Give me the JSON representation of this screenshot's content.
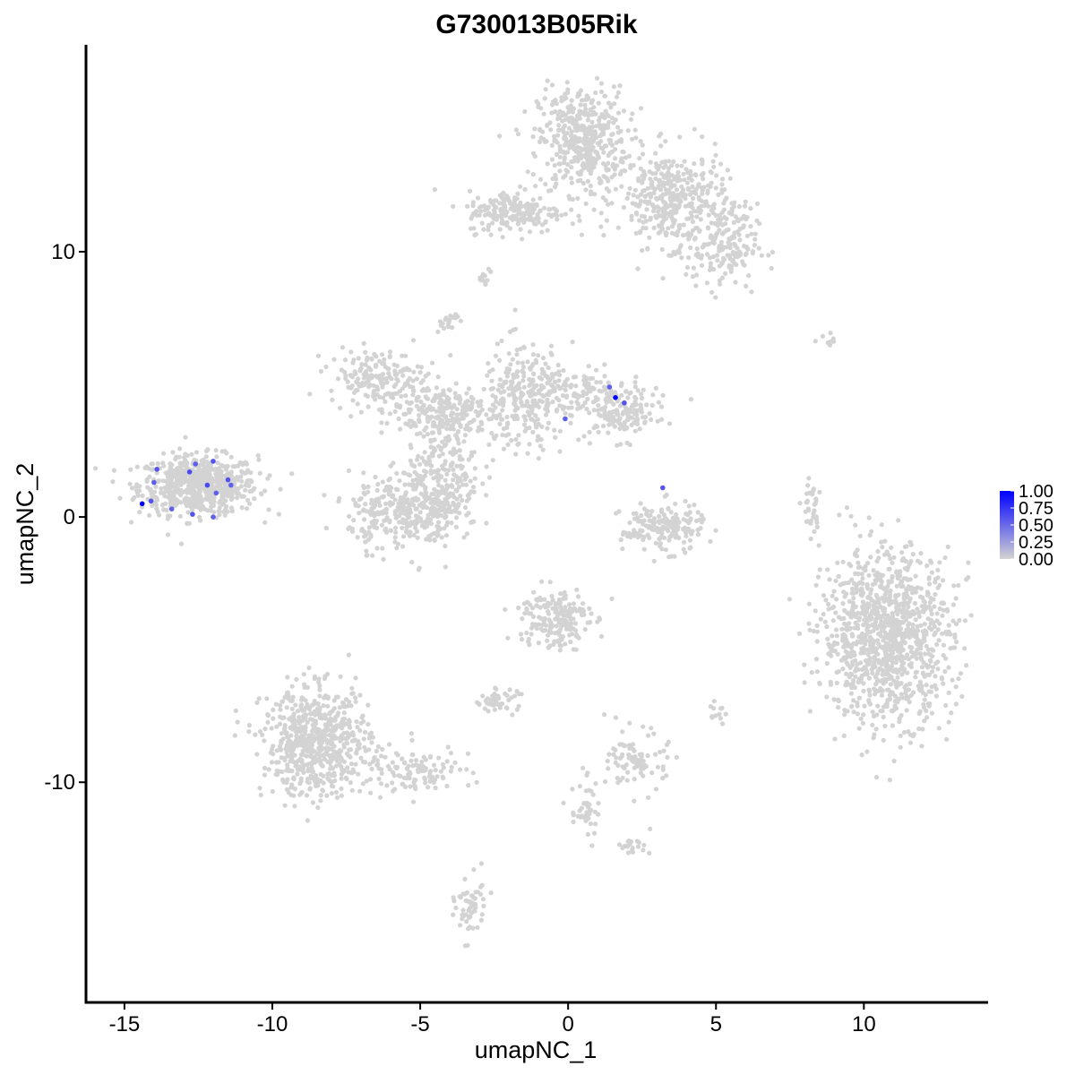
{
  "chart_data": {
    "type": "scatter",
    "title": "G730013B05Rik",
    "xlabel": "umapNC_1",
    "ylabel": "umapNC_2",
    "xlim": [
      -16.3,
      14.2
    ],
    "ylim": [
      -18.3,
      17.8
    ],
    "x_ticks": [
      -15,
      -10,
      -5,
      0,
      5,
      10
    ],
    "y_ticks": [
      -10,
      0,
      10
    ],
    "x_tick_labels": [
      "-15",
      "-10",
      "-5",
      "0",
      "5",
      "10"
    ],
    "y_tick_labels": [
      "-10",
      "0",
      "10"
    ],
    "grid": false,
    "legend": {
      "placement": "right",
      "type": "colorbar",
      "min_color": "#d3d3d3",
      "max_color": "#0000ff",
      "labels": [
        "1.00",
        "0.75",
        "0.50",
        "0.25",
        "0.00"
      ],
      "values": [
        1.0,
        0.75,
        0.5,
        0.25,
        0.0
      ]
    },
    "background_color": "#d3d3d3",
    "clusters": [
      {
        "cx": -12.5,
        "cy": 1.2,
        "sx": 1.0,
        "sy": 0.55,
        "n": 650
      },
      {
        "cx": 0.5,
        "cy": 14.2,
        "sx": 0.75,
        "sy": 1.0,
        "n": 450
      },
      {
        "cx": 3.5,
        "cy": 12.0,
        "sx": 0.9,
        "sy": 0.9,
        "n": 380
      },
      {
        "cx": 5.2,
        "cy": 10.2,
        "sx": 0.6,
        "sy": 0.8,
        "n": 180
      },
      {
        "cx": -1.8,
        "cy": 11.5,
        "sx": 0.8,
        "sy": 0.4,
        "n": 200
      },
      {
        "cx": -6.5,
        "cy": 5.3,
        "sx": 0.8,
        "sy": 0.5,
        "n": 170
      },
      {
        "cx": -4.3,
        "cy": 4.0,
        "sx": 1.0,
        "sy": 0.5,
        "n": 220
      },
      {
        "cx": -4.2,
        "cy": 1.8,
        "sx": 0.6,
        "sy": 1.2,
        "n": 260
      },
      {
        "cx": -5.6,
        "cy": 0.2,
        "sx": 0.9,
        "sy": 0.7,
        "n": 320
      },
      {
        "cx": -1.5,
        "cy": 4.5,
        "sx": 0.7,
        "sy": 1.0,
        "n": 240
      },
      {
        "cx": 1.8,
        "cy": 3.9,
        "sx": 0.6,
        "sy": 0.5,
        "n": 160
      },
      {
        "cx": 0.3,
        "cy": 4.8,
        "sx": 0.9,
        "sy": 0.4,
        "n": 120
      },
      {
        "cx": 3.2,
        "cy": -0.4,
        "sx": 0.7,
        "sy": 0.45,
        "n": 180
      },
      {
        "cx": 10.8,
        "cy": -4.5,
        "sx": 1.1,
        "sy": 1.6,
        "n": 1100
      },
      {
        "cx": -8.5,
        "cy": -8.5,
        "sx": 0.9,
        "sy": 1.0,
        "n": 650
      },
      {
        "cx": -5.3,
        "cy": -9.6,
        "sx": 1.0,
        "sy": 0.4,
        "n": 120
      },
      {
        "cx": -0.5,
        "cy": -3.8,
        "sx": 0.6,
        "sy": 0.6,
        "n": 190
      },
      {
        "cx": 2.4,
        "cy": -9.2,
        "sx": 0.5,
        "sy": 0.55,
        "n": 90
      },
      {
        "cx": -2.4,
        "cy": -6.9,
        "sx": 0.35,
        "sy": 0.2,
        "n": 50
      },
      {
        "cx": -3.3,
        "cy": -14.7,
        "sx": 0.25,
        "sy": 0.6,
        "n": 60
      },
      {
        "cx": 8.2,
        "cy": 0.4,
        "sx": 0.15,
        "sy": 0.6,
        "n": 35
      },
      {
        "cx": 0.6,
        "cy": -11.0,
        "sx": 0.25,
        "sy": 0.6,
        "n": 45
      },
      {
        "cx": -4.1,
        "cy": 7.3,
        "sx": 0.2,
        "sy": 0.2,
        "n": 20
      },
      {
        "cx": 2.2,
        "cy": -12.4,
        "sx": 0.3,
        "sy": 0.15,
        "n": 20
      },
      {
        "cx": -2.8,
        "cy": 9.1,
        "sx": 0.15,
        "sy": 0.2,
        "n": 12
      },
      {
        "cx": 8.9,
        "cy": 6.7,
        "sx": 0.2,
        "sy": 0.1,
        "n": 8
      },
      {
        "cx": 5.0,
        "cy": -7.3,
        "sx": 0.15,
        "sy": 0.2,
        "n": 12
      }
    ],
    "highlighted_points": [
      {
        "x": -14.4,
        "y": 0.5,
        "value": 1.0
      },
      {
        "x": -14.1,
        "y": 0.6,
        "value": 0.6
      },
      {
        "x": -14.0,
        "y": 1.3,
        "value": 0.55
      },
      {
        "x": -13.9,
        "y": 1.8,
        "value": 0.6
      },
      {
        "x": -13.4,
        "y": 0.3,
        "value": 0.55
      },
      {
        "x": -12.8,
        "y": 1.7,
        "value": 0.65
      },
      {
        "x": -12.6,
        "y": 2.0,
        "value": 0.55
      },
      {
        "x": -12.7,
        "y": 0.1,
        "value": 0.6
      },
      {
        "x": -12.2,
        "y": 1.2,
        "value": 0.65
      },
      {
        "x": -12.0,
        "y": 2.1,
        "value": 0.6
      },
      {
        "x": -11.9,
        "y": 0.9,
        "value": 0.55
      },
      {
        "x": -11.5,
        "y": 1.4,
        "value": 0.6
      },
      {
        "x": -11.4,
        "y": 1.2,
        "value": 0.55
      },
      {
        "x": -12.0,
        "y": 0.0,
        "value": 0.55
      },
      {
        "x": 1.4,
        "y": 4.9,
        "value": 0.55
      },
      {
        "x": 1.6,
        "y": 4.5,
        "value": 1.0
      },
      {
        "x": 1.9,
        "y": 4.3,
        "value": 0.6
      },
      {
        "x": -0.1,
        "y": 3.7,
        "value": 0.55
      },
      {
        "x": 3.2,
        "y": 1.1,
        "value": 0.6
      }
    ]
  }
}
